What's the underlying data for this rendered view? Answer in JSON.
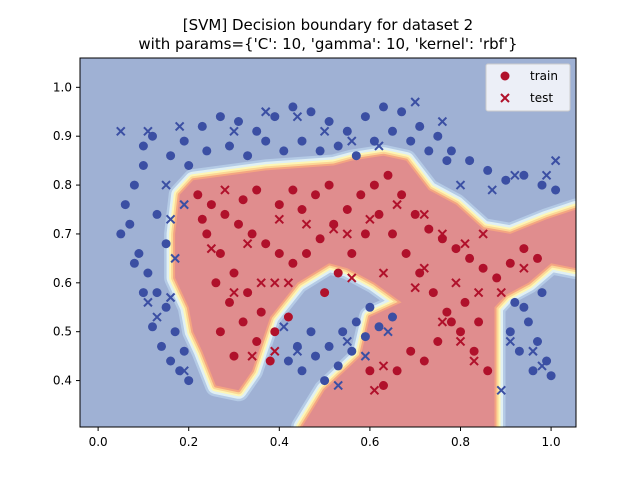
{
  "chart_data": {
    "type": "scatter",
    "title": "[SVM] Decision boundary for dataset 2",
    "subtitle": "with params={'C': 10, 'gamma': 10, 'kernel': 'rbf'}",
    "xlabel": "",
    "ylabel": "",
    "xlim": [
      -0.04,
      1.055
    ],
    "ylim": [
      0.305,
      1.06
    ],
    "x_ticks": [
      0.0,
      0.2,
      0.4,
      0.6,
      0.8,
      1.0
    ],
    "x_tick_labels": [
      "0.0",
      "0.2",
      "0.4",
      "0.6",
      "0.8",
      "1.0"
    ],
    "y_ticks": [
      0.4,
      0.5,
      0.6,
      0.7,
      0.8,
      0.9,
      1.0
    ],
    "y_tick_labels": [
      "0.4",
      "0.5",
      "0.6",
      "0.7",
      "0.8",
      "0.9",
      "1.0"
    ],
    "grid": false,
    "legend": {
      "placement": "top-right",
      "entries": [
        {
          "label": "train",
          "marker": "circle"
        },
        {
          "label": "test",
          "marker": "x"
        }
      ]
    },
    "colors": {
      "class_0": "#3b4fa3",
      "class_1": "#b0112b",
      "region_0": "#9fb1d4",
      "region_1": "#e08d8e",
      "boundary_bands": [
        "#b5cbe6",
        "#e0f0f4",
        "#fdf6b7",
        "#fcd795",
        "#f4a582"
      ]
    },
    "decision_region_class1": [
      [
        0.18,
        0.78
      ],
      [
        0.21,
        0.81
      ],
      [
        0.37,
        0.83
      ],
      [
        0.52,
        0.84
      ],
      [
        0.56,
        0.85
      ],
      [
        0.63,
        0.86
      ],
      [
        0.68,
        0.85
      ],
      [
        0.73,
        0.79
      ],
      [
        0.79,
        0.76
      ],
      [
        0.85,
        0.71
      ],
      [
        0.91,
        0.7
      ],
      [
        0.99,
        0.73
      ],
      [
        1.055,
        0.75
      ],
      [
        1.055,
        0.63
      ],
      [
        1.0,
        0.64
      ],
      [
        0.95,
        0.6
      ],
      [
        0.9,
        0.575
      ],
      [
        0.875,
        0.55
      ],
      [
        0.875,
        0.305
      ],
      [
        0.45,
        0.305
      ],
      [
        0.5,
        0.38
      ],
      [
        0.58,
        0.45
      ],
      [
        0.6,
        0.53
      ],
      [
        0.67,
        0.56
      ],
      [
        0.61,
        0.6
      ],
      [
        0.55,
        0.63
      ],
      [
        0.51,
        0.64
      ],
      [
        0.44,
        0.6
      ],
      [
        0.38,
        0.53
      ],
      [
        0.34,
        0.42
      ],
      [
        0.31,
        0.38
      ],
      [
        0.26,
        0.39
      ],
      [
        0.23,
        0.46
      ],
      [
        0.21,
        0.5
      ],
      [
        0.2,
        0.55
      ],
      [
        0.17,
        0.61
      ],
      [
        0.17,
        0.7
      ]
    ],
    "series": [
      {
        "name": "train",
        "marker": "circle",
        "class_0": [
          [
            0.06,
            0.76
          ],
          [
            0.08,
            0.8
          ],
          [
            0.1,
            0.84
          ],
          [
            0.07,
            0.72
          ],
          [
            0.09,
            0.66
          ],
          [
            0.11,
            0.62
          ],
          [
            0.13,
            0.58
          ],
          [
            0.15,
            0.55
          ],
          [
            0.12,
            0.51
          ],
          [
            0.14,
            0.47
          ],
          [
            0.16,
            0.44
          ],
          [
            0.18,
            0.42
          ],
          [
            0.2,
            0.4
          ],
          [
            0.15,
            0.68
          ],
          [
            0.13,
            0.74
          ],
          [
            0.1,
            0.88
          ],
          [
            0.12,
            0.9
          ],
          [
            0.16,
            0.86
          ],
          [
            0.19,
            0.89
          ],
          [
            0.23,
            0.92
          ],
          [
            0.27,
            0.94
          ],
          [
            0.31,
            0.93
          ],
          [
            0.35,
            0.91
          ],
          [
            0.39,
            0.94
          ],
          [
            0.43,
            0.96
          ],
          [
            0.47,
            0.95
          ],
          [
            0.51,
            0.93
          ],
          [
            0.55,
            0.91
          ],
          [
            0.59,
            0.94
          ],
          [
            0.63,
            0.96
          ],
          [
            0.67,
            0.95
          ],
          [
            0.71,
            0.92
          ],
          [
            0.75,
            0.9
          ],
          [
            0.78,
            0.87
          ],
          [
            0.82,
            0.85
          ],
          [
            0.86,
            0.83
          ],
          [
            0.9,
            0.81
          ],
          [
            0.94,
            0.82
          ],
          [
            0.98,
            0.8
          ],
          [
            1.01,
            0.79
          ],
          [
            0.29,
            0.88
          ],
          [
            0.33,
            0.86
          ],
          [
            0.37,
            0.89
          ],
          [
            0.41,
            0.87
          ],
          [
            0.45,
            0.89
          ],
          [
            0.49,
            0.87
          ],
          [
            0.53,
            0.88
          ],
          [
            0.57,
            0.86
          ],
          [
            0.61,
            0.89
          ],
          [
            0.65,
            0.91
          ],
          [
            0.69,
            0.89
          ],
          [
            0.73,
            0.87
          ],
          [
            0.77,
            0.85
          ],
          [
            0.24,
            0.87
          ],
          [
            0.2,
            0.84
          ],
          [
            0.42,
            0.44
          ],
          [
            0.45,
            0.42
          ],
          [
            0.48,
            0.45
          ],
          [
            0.51,
            0.47
          ],
          [
            0.54,
            0.5
          ],
          [
            0.57,
            0.52
          ],
          [
            0.6,
            0.55
          ],
          [
            0.5,
            0.4
          ],
          [
            0.53,
            0.43
          ],
          [
            0.56,
            0.46
          ],
          [
            0.59,
            0.49
          ],
          [
            0.62,
            0.51
          ],
          [
            0.65,
            0.53
          ],
          [
            0.44,
            0.47
          ],
          [
            0.47,
            0.5
          ],
          [
            0.92,
            0.56
          ],
          [
            0.95,
            0.52
          ],
          [
            0.97,
            0.48
          ],
          [
            0.99,
            0.44
          ],
          [
            1.0,
            0.41
          ],
          [
            0.93,
            0.46
          ],
          [
            0.96,
            0.42
          ],
          [
            0.91,
            0.5
          ],
          [
            0.94,
            0.55
          ],
          [
            0.98,
            0.58
          ],
          [
            0.05,
            0.7
          ],
          [
            0.08,
            0.64
          ],
          [
            0.1,
            0.58
          ],
          [
            0.17,
            0.5
          ],
          [
            0.19,
            0.46
          ]
        ],
        "class_1": [
          [
            0.22,
            0.78
          ],
          [
            0.25,
            0.76
          ],
          [
            0.28,
            0.74
          ],
          [
            0.31,
            0.72
          ],
          [
            0.34,
            0.7
          ],
          [
            0.37,
            0.68
          ],
          [
            0.4,
            0.66
          ],
          [
            0.43,
            0.64
          ],
          [
            0.46,
            0.66
          ],
          [
            0.49,
            0.69
          ],
          [
            0.52,
            0.72
          ],
          [
            0.55,
            0.75
          ],
          [
            0.58,
            0.78
          ],
          [
            0.61,
            0.8
          ],
          [
            0.64,
            0.82
          ],
          [
            0.67,
            0.78
          ],
          [
            0.7,
            0.74
          ],
          [
            0.73,
            0.71
          ],
          [
            0.76,
            0.69
          ],
          [
            0.79,
            0.67
          ],
          [
            0.82,
            0.65
          ],
          [
            0.85,
            0.63
          ],
          [
            0.88,
            0.61
          ],
          [
            0.91,
            0.64
          ],
          [
            0.94,
            0.67
          ],
          [
            0.97,
            0.65
          ],
          [
            0.24,
            0.7
          ],
          [
            0.27,
            0.66
          ],
          [
            0.3,
            0.62
          ],
          [
            0.33,
            0.58
          ],
          [
            0.36,
            0.54
          ],
          [
            0.39,
            0.5
          ],
          [
            0.42,
            0.53
          ],
          [
            0.26,
            0.6
          ],
          [
            0.29,
            0.56
          ],
          [
            0.32,
            0.52
          ],
          [
            0.35,
            0.48
          ],
          [
            0.38,
            0.44
          ],
          [
            0.3,
            0.45
          ],
          [
            0.27,
            0.5
          ],
          [
            0.56,
            0.66
          ],
          [
            0.59,
            0.7
          ],
          [
            0.62,
            0.74
          ],
          [
            0.65,
            0.7
          ],
          [
            0.68,
            0.66
          ],
          [
            0.71,
            0.62
          ],
          [
            0.74,
            0.58
          ],
          [
            0.77,
            0.54
          ],
          [
            0.8,
            0.5
          ],
          [
            0.83,
            0.46
          ],
          [
            0.86,
            0.42
          ],
          [
            0.72,
            0.44
          ],
          [
            0.75,
            0.48
          ],
          [
            0.78,
            0.52
          ],
          [
            0.81,
            0.56
          ],
          [
            0.84,
            0.52
          ],
          [
            0.66,
            0.42
          ],
          [
            0.69,
            0.46
          ],
          [
            0.63,
            0.39
          ],
          [
            0.6,
            0.42
          ],
          [
            0.45,
            0.75
          ],
          [
            0.48,
            0.78
          ],
          [
            0.51,
            0.8
          ],
          [
            0.4,
            0.76
          ],
          [
            0.43,
            0.79
          ],
          [
            0.35,
            0.79
          ],
          [
            0.32,
            0.77
          ],
          [
            0.23,
            0.73
          ],
          [
            0.53,
            0.62
          ],
          [
            0.5,
            0.58
          ]
        ]
      },
      {
        "name": "test",
        "marker": "x",
        "class_0": [
          [
            0.05,
            0.91
          ],
          [
            0.11,
            0.91
          ],
          [
            0.15,
            0.8
          ],
          [
            0.18,
            0.92
          ],
          [
            0.3,
            0.91
          ],
          [
            0.37,
            0.95
          ],
          [
            0.44,
            0.94
          ],
          [
            0.5,
            0.91
          ],
          [
            0.56,
            0.89
          ],
          [
            0.62,
            0.88
          ],
          [
            0.7,
            0.97
          ],
          [
            0.76,
            0.93
          ],
          [
            0.8,
            0.8
          ],
          [
            0.87,
            0.79
          ],
          [
            0.92,
            0.82
          ],
          [
            0.99,
            0.82
          ],
          [
            1.01,
            0.85
          ],
          [
            0.11,
            0.56
          ],
          [
            0.13,
            0.53
          ],
          [
            0.16,
            0.57
          ],
          [
            0.19,
            0.42
          ],
          [
            0.41,
            0.51
          ],
          [
            0.44,
            0.46
          ],
          [
            0.53,
            0.39
          ],
          [
            0.55,
            0.48
          ],
          [
            0.59,
            0.45
          ],
          [
            0.64,
            0.5
          ],
          [
            0.89,
            0.38
          ],
          [
            0.91,
            0.48
          ],
          [
            0.96,
            0.46
          ],
          [
            0.98,
            0.43
          ],
          [
            0.19,
            0.76
          ],
          [
            0.17,
            0.65
          ],
          [
            0.16,
            0.73
          ]
        ],
        "class_1": [
          [
            0.25,
            0.67
          ],
          [
            0.28,
            0.79
          ],
          [
            0.33,
            0.68
          ],
          [
            0.36,
            0.6
          ],
          [
            0.39,
            0.6
          ],
          [
            0.42,
            0.6
          ],
          [
            0.4,
            0.73
          ],
          [
            0.46,
            0.72
          ],
          [
            0.52,
            0.71
          ],
          [
            0.55,
            0.7
          ],
          [
            0.6,
            0.73
          ],
          [
            0.66,
            0.76
          ],
          [
            0.72,
            0.74
          ],
          [
            0.76,
            0.7
          ],
          [
            0.79,
            0.6
          ],
          [
            0.84,
            0.58
          ],
          [
            0.89,
            0.58
          ],
          [
            0.94,
            0.63
          ],
          [
            0.7,
            0.59
          ],
          [
            0.72,
            0.63
          ],
          [
            0.76,
            0.52
          ],
          [
            0.8,
            0.48
          ],
          [
            0.83,
            0.44
          ],
          [
            0.63,
            0.43
          ],
          [
            0.61,
            0.38
          ],
          [
            0.39,
            0.46
          ],
          [
            0.34,
            0.45
          ],
          [
            0.3,
            0.58
          ],
          [
            0.56,
            0.61
          ],
          [
            0.63,
            0.62
          ],
          [
            0.81,
            0.68
          ],
          [
            0.85,
            0.7
          ]
        ]
      }
    ]
  }
}
